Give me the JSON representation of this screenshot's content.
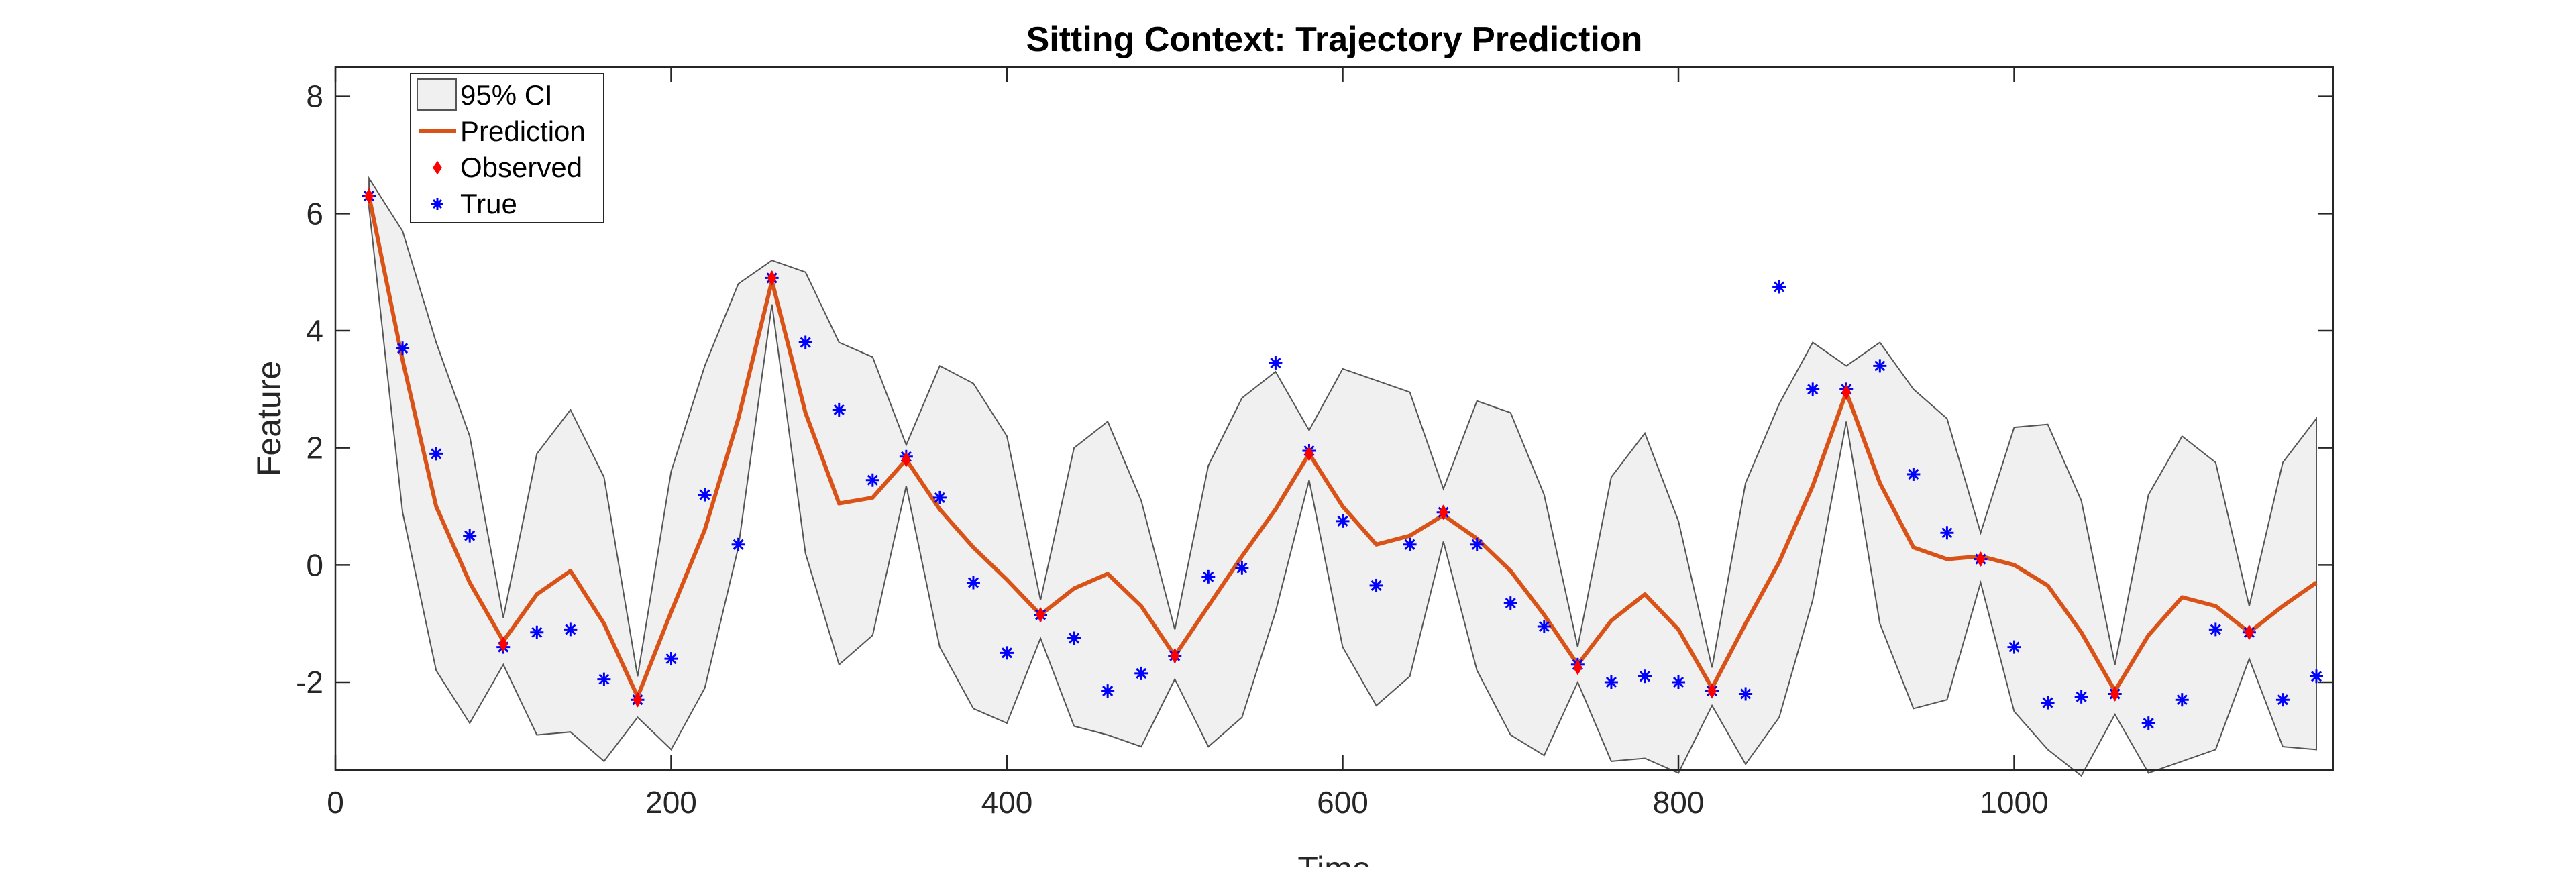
{
  "chart_data": {
    "type": "line",
    "title": "Sitting Context: Trajectory Prediction",
    "xlabel": "Time",
    "ylabel": "Feature",
    "xlim": [
      0,
      1190
    ],
    "ylim": [
      -3.5,
      8.5
    ],
    "xticks": [
      0,
      200,
      400,
      600,
      800,
      1000
    ],
    "yticks": [
      -2,
      0,
      2,
      4,
      6,
      8
    ],
    "grid": false,
    "legend_location": "top-left",
    "legend": [
      "95% CI",
      "Prediction",
      "Observed",
      "True"
    ],
    "colors": {
      "ci_fill": "#f0f0f0",
      "ci_edge": "#555555",
      "prediction": "#d95319",
      "observed": "#ff0000",
      "true": "#0000ff"
    },
    "x": [
      20,
      40,
      60,
      80,
      100,
      120,
      140,
      160,
      180,
      200,
      220,
      240,
      260,
      280,
      300,
      320,
      340,
      360,
      380,
      400,
      420,
      440,
      460,
      480,
      500,
      520,
      540,
      560,
      580,
      600,
      620,
      640,
      660,
      680,
      700,
      720,
      740,
      760,
      780,
      800,
      820,
      840,
      860,
      880,
      900,
      920,
      940,
      960,
      980,
      1000,
      1020,
      1040,
      1060,
      1080,
      1100,
      1120,
      1140,
      1160,
      1180
    ],
    "series": [
      {
        "name": "95% CI",
        "upper": [
          6.6,
          5.7,
          3.8,
          2.2,
          -0.9,
          1.9,
          2.65,
          1.5,
          -1.9,
          1.6,
          3.4,
          4.8,
          5.2,
          5.0,
          3.8,
          3.55,
          2.05,
          3.4,
          3.1,
          2.2,
          -0.6,
          2.0,
          2.45,
          1.1,
          -1.1,
          1.7,
          2.85,
          3.3,
          2.3,
          3.35,
          3.15,
          2.95,
          1.3,
          2.8,
          2.6,
          1.2,
          -1.4,
          1.5,
          2.25,
          0.75,
          -1.75,
          1.4,
          2.75,
          3.8,
          3.4,
          3.8,
          3.0,
          2.5,
          0.55,
          2.35,
          2.4,
          1.1,
          -1.7,
          1.2,
          2.2,
          1.75,
          -0.7,
          1.75,
          2.5
        ],
        "lower": [
          6.1,
          0.9,
          -1.8,
          -2.7,
          -1.7,
          -2.9,
          -2.85,
          -3.35,
          -2.6,
          -3.15,
          -2.1,
          0.3,
          4.45,
          0.2,
          -1.7,
          -1.2,
          1.35,
          -1.4,
          -2.45,
          -2.7,
          -1.25,
          -2.75,
          -2.9,
          -3.1,
          -1.95,
          -3.1,
          -2.6,
          -0.8,
          1.45,
          -1.4,
          -2.4,
          -1.9,
          0.4,
          -1.8,
          -2.9,
          -3.25,
          -2.0,
          -3.35,
          -3.3,
          -3.55,
          -2.4,
          -3.4,
          -2.6,
          -0.6,
          2.45,
          -1.0,
          -2.45,
          -2.3,
          -0.3,
          -2.5,
          -3.15,
          -3.6,
          -2.55,
          -3.55,
          -3.35,
          -3.15,
          -1.6,
          -3.1,
          -3.15
        ]
      },
      {
        "name": "Prediction",
        "values": [
          6.3,
          3.5,
          1.0,
          -0.3,
          -1.3,
          -0.5,
          -0.1,
          -1.0,
          -2.25,
          -0.8,
          0.6,
          2.5,
          4.85,
          2.6,
          1.05,
          1.15,
          1.8,
          0.95,
          0.3,
          -0.25,
          -0.85,
          -0.4,
          -0.15,
          -0.7,
          -1.55,
          -0.7,
          0.15,
          0.95,
          1.9,
          1.0,
          0.35,
          0.5,
          0.85,
          0.45,
          -0.1,
          -0.85,
          -1.7,
          -0.95,
          -0.5,
          -1.1,
          -2.1,
          -1.0,
          0.05,
          1.35,
          2.95,
          1.4,
          0.3,
          0.1,
          0.15,
          0.0,
          -0.35,
          -1.15,
          -2.15,
          -1.2,
          -0.55,
          -0.7,
          -1.15,
          -0.7,
          -0.3
        ]
      },
      {
        "name": "Observed",
        "x": [
          20,
          100,
          180,
          260,
          340,
          420,
          500,
          580,
          660,
          740,
          820,
          900,
          980,
          1060,
          1140
        ],
        "values": [
          6.3,
          -1.35,
          -2.3,
          4.9,
          1.8,
          -0.85,
          -1.55,
          1.9,
          0.9,
          -1.75,
          -2.15,
          2.95,
          0.1,
          -2.2,
          -1.15
        ]
      },
      {
        "name": "True",
        "values": [
          6.3,
          3.7,
          1.9,
          0.5,
          -1.4,
          -1.15,
          -1.1,
          -1.95,
          -2.3,
          -1.6,
          1.2,
          0.35,
          4.9,
          3.8,
          2.65,
          1.45,
          1.85,
          1.15,
          -0.3,
          -1.5,
          -0.85,
          -1.25,
          -2.15,
          -1.85,
          -1.55,
          -0.2,
          -0.05,
          3.45,
          1.95,
          0.75,
          -0.35,
          0.35,
          0.9,
          0.35,
          -0.65,
          -1.05,
          -1.7,
          -2.0,
          -1.9,
          -2.0,
          -2.15,
          -2.2,
          4.75,
          3.0,
          3.0,
          3.4,
          1.55,
          0.55,
          0.1,
          -1.4,
          -2.35,
          -2.25,
          -2.2,
          -2.7,
          -2.3,
          -1.1,
          -1.15,
          -2.3,
          -1.9
        ]
      }
    ]
  }
}
